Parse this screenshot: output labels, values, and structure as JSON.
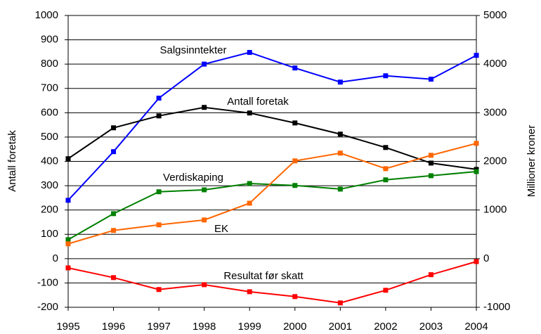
{
  "chart_data": {
    "type": "line",
    "y_label": "Antall foretak",
    "y2_label": "Millioner kroner",
    "categories": [
      "1995",
      "1996",
      "1997",
      "1998",
      "1999",
      "2000",
      "2001",
      "2002",
      "2003",
      "2004"
    ],
    "ylim": [
      -200,
      1000
    ],
    "yticks": [
      -200,
      -100,
      0,
      100,
      200,
      300,
      400,
      500,
      600,
      700,
      800,
      900,
      1000
    ],
    "y2lim": [
      -1000,
      5000
    ],
    "y2ticks": [
      -1000,
      0,
      1000,
      2000,
      3000,
      4000,
      5000
    ],
    "grid": true,
    "series": [
      {
        "name": "Salgsinntekter",
        "color": "#0000ff",
        "axis": "y2",
        "values": [
          1200,
          2200,
          3300,
          4000,
          4240,
          3920,
          3630,
          3760,
          3690,
          4180
        ]
      },
      {
        "name": "Antall foretak",
        "color": "#000000",
        "axis": "y",
        "values": [
          411,
          538,
          587,
          622,
          599,
          558,
          512,
          457,
          393,
          367
        ]
      },
      {
        "name": "Verdiskaping",
        "color": "#008000",
        "axis": "y2",
        "values": [
          390,
          925,
          1375,
          1415,
          1545,
          1505,
          1430,
          1620,
          1705,
          1790
        ]
      },
      {
        "name": "EK",
        "color": "#ff6600",
        "axis": "y2",
        "values": [
          305,
          580,
          695,
          795,
          1140,
          2010,
          2170,
          1850,
          2125,
          2370
        ]
      },
      {
        "name": "Resultat før skatt",
        "color": "#ff0000",
        "axis": "y2",
        "values": [
          -190,
          -390,
          -635,
          -535,
          -680,
          -780,
          -910,
          -650,
          -330,
          -60
        ]
      }
    ]
  }
}
